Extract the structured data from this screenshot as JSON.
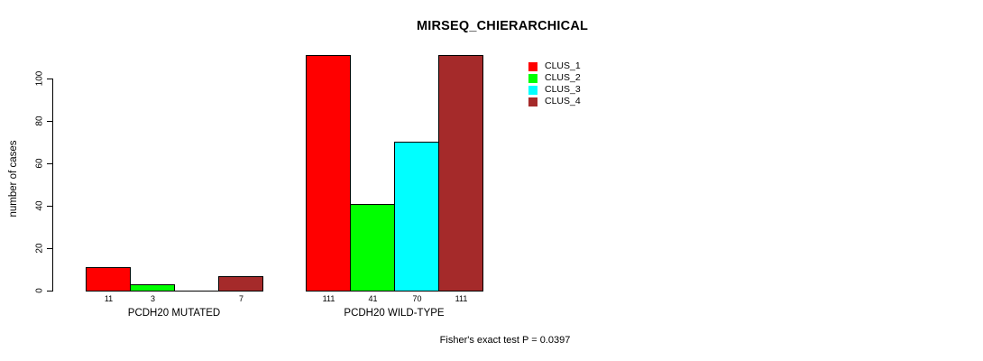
{
  "chart_data": {
    "type": "bar",
    "title": "MIRSEQ_CHIERARCHICAL",
    "ylabel": "number of cases",
    "xlabel": "",
    "footer": "Fisher's exact test P = 0.0397",
    "yticks": [
      0,
      20,
      40,
      60,
      80,
      100
    ],
    "ylim": [
      0,
      112
    ],
    "grid": false,
    "legend_position": "inside-top-right",
    "legend": [
      {
        "label": "CLUS_1",
        "color": "#ff0000"
      },
      {
        "label": "CLUS_2",
        "color": "#00ff00"
      },
      {
        "label": "CLUS_3",
        "color": "#00ffff"
      },
      {
        "label": "CLUS_4",
        "color": "#a52a2a"
      }
    ],
    "series_colors": [
      "#ff0000",
      "#00ff00",
      "#00ffff",
      "#a52a2a"
    ],
    "groups": [
      {
        "label": "PCDH20 MUTATED",
        "values": [
          11,
          3,
          0,
          7
        ],
        "value_labels": [
          "11",
          "3",
          "",
          "7"
        ]
      },
      {
        "label": "PCDH20 WILD-TYPE",
        "values": [
          111,
          41,
          70,
          111
        ],
        "value_labels": [
          "111",
          "41",
          "70",
          "111"
        ]
      }
    ]
  }
}
